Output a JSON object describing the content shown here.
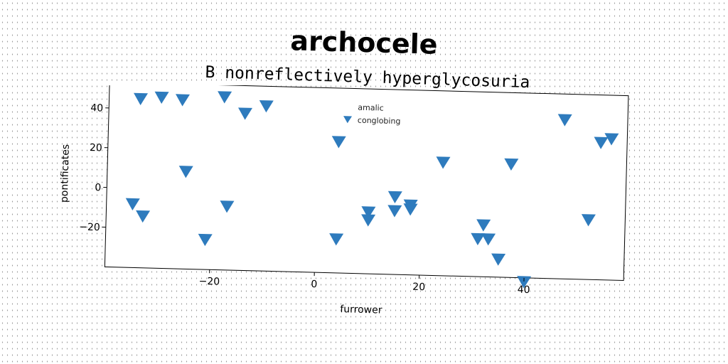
{
  "chart_data": {
    "type": "scatter",
    "title": "archocele",
    "subtitle": "B nonreflectively hyperglycosuria",
    "xlabel": "furrower",
    "ylabel": "pontificates",
    "xlim": [
      -40,
      59
    ],
    "ylim": [
      -40,
      53
    ],
    "xticks": [
      -20,
      0,
      20,
      40
    ],
    "yticks": [
      40,
      20,
      0,
      -20
    ],
    "xtick_labels": [
      "−20",
      "0",
      "20",
      "40"
    ],
    "ytick_labels": [
      "40",
      "20",
      "0",
      "−20"
    ],
    "legend": {
      "title": "amalic",
      "entries": [
        "conglobing"
      ],
      "placement": "top-center"
    },
    "marker": "triangle-down",
    "color": "#2e7bbd",
    "series": [
      {
        "name": "conglobing",
        "points": [
          [
            -34,
            45
          ],
          [
            -30,
            46
          ],
          [
            -26,
            45
          ],
          [
            -18,
            47
          ],
          [
            -14,
            39
          ],
          [
            -10,
            43
          ],
          [
            -25,
            9
          ],
          [
            -35,
            -8
          ],
          [
            -33,
            -14
          ],
          [
            -21,
            -25
          ],
          [
            -17,
            -8
          ],
          [
            4,
            26
          ],
          [
            4,
            -23
          ],
          [
            10,
            -9
          ],
          [
            10,
            -13
          ],
          [
            15,
            -1
          ],
          [
            15,
            -8
          ],
          [
            18,
            -5
          ],
          [
            18,
            -7
          ],
          [
            24,
            17
          ],
          [
            31,
            -21
          ],
          [
            32,
            -14
          ],
          [
            33,
            -21
          ],
          [
            35,
            -31
          ],
          [
            37,
            17
          ],
          [
            40,
            -42
          ],
          [
            47,
            40
          ],
          [
            52,
            -10
          ],
          [
            54,
            29
          ],
          [
            56,
            31
          ]
        ]
      }
    ]
  }
}
